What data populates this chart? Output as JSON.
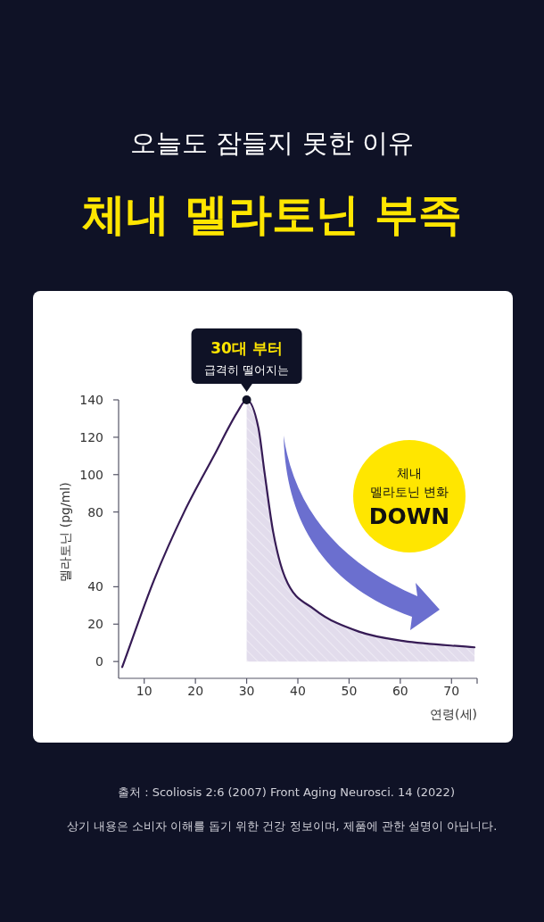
{
  "chart_data": {
    "type": "line",
    "title": "오늘도 잠들지 못한 이유",
    "subtitle": "체내 멜라토닌 부족",
    "xlabel": "연령(세)",
    "ylabel": "멜라토닌 (pg/ml)",
    "xlim": [
      5,
      75
    ],
    "ylim": [
      -9,
      140
    ],
    "xticks": [
      10,
      20,
      30,
      40,
      50,
      60,
      70
    ],
    "yticks": [
      0,
      20,
      40,
      80,
      100,
      120,
      140
    ],
    "series": [
      {
        "type": "area",
        "color": "#e2dcec",
        "x": [
          30,
          32.3,
          33.5,
          35.2,
          37.5,
          43.2,
          51.9,
          60.6,
          74.5
        ],
        "values": [
          140,
          125,
          101,
          69,
          45,
          28,
          16,
          11,
          7.6
        ]
      },
      {
        "type": "line",
        "color": "#361b55",
        "x": [
          5.7,
          11.9,
          17.8,
          23.6,
          28.3,
          30,
          32.3,
          33.5,
          35.2,
          37.5,
          43.2,
          51.9,
          60.6,
          74.5
        ],
        "values": [
          -3,
          43.5,
          80,
          110,
          134,
          140,
          125,
          101,
          69,
          45,
          28,
          16,
          11,
          7.6
        ]
      }
    ],
    "annotations": [
      {
        "text": "30대 부터",
        "x": 30,
        "y": 140
      },
      "급격히 떨어지는",
      "체내",
      "멜라토닌 변화",
      "DOWN",
      "출처 : Scoliosis 2:6 (2007) Front Aging Neurosci. 14 (2022)",
      "상기 내용은 소비자 이해를 돕기 위한 건강 정보이며, 제품에 관한 설명이 아닙니다."
    ],
    "grid": false,
    "marker": "none",
    "line_style": "solid"
  }
}
